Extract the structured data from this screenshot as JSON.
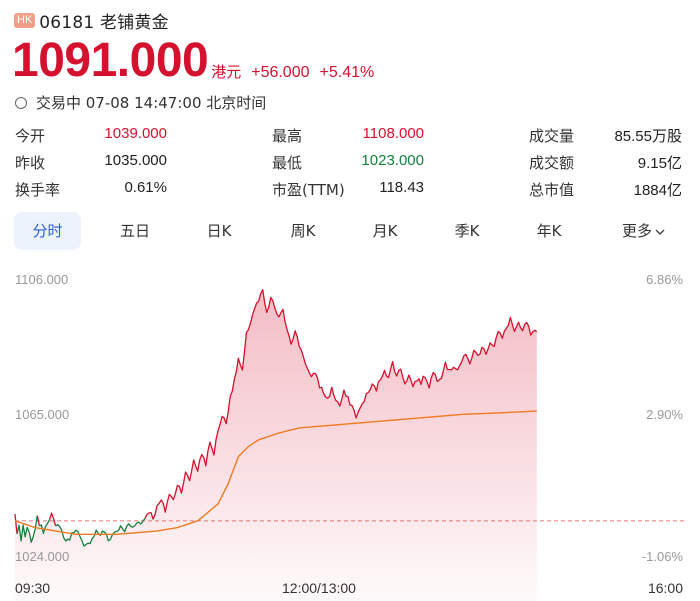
{
  "header": {
    "market_badge": "HK",
    "code_name": "06181 老铺黄金"
  },
  "price": {
    "last": "1091.000",
    "unit": "港元",
    "change": "+56.000",
    "change_pct": "+5.41%"
  },
  "status": {
    "text": "交易中 07-08 14:47:00 北京时间"
  },
  "quote": {
    "rows": [
      [
        {
          "label": "今开",
          "value": "1039.000"
        },
        {
          "label": "最高",
          "value": "1108.000"
        },
        {
          "label": "成交量",
          "value": "85.55万股"
        }
      ],
      [
        {
          "label": "昨收",
          "value": "1035.000"
        },
        {
          "label": "最低",
          "value": "1023.000"
        },
        {
          "label": "成交额",
          "value": "9.15亿"
        }
      ],
      [
        {
          "label": "换手率",
          "value": "0.61%"
        },
        {
          "label": "市盈(TTM)",
          "value": "118.43"
        },
        {
          "label": "总市值",
          "value": "1884亿"
        }
      ]
    ]
  },
  "tabs": [
    "分时",
    "五日",
    "日K",
    "周K",
    "月K",
    "季K",
    "年K",
    "更多"
  ],
  "colors": {
    "up": "#d4112e",
    "down": "#17803d",
    "avg": "#ef7a22",
    "prev_close": "#e06060",
    "tab_active": "#2c5fd8"
  },
  "chart_data": {
    "type": "line",
    "y_labels": [
      "1106.000",
      "1065.000",
      "1024.000"
    ],
    "y_pct_labels": [
      "6.86%",
      "2.90%",
      "-1.06%"
    ],
    "x_labels": [
      "09:30",
      "12:00/13:00",
      "16:00"
    ],
    "ylim": [
      1024.0,
      1106.0
    ],
    "prev_close": 1035.0,
    "last_price": 1091.0,
    "time_span_minutes": 330,
    "elapsed_minutes": 257,
    "price_anchors": [
      [
        0,
        1037
      ],
      [
        1,
        1031
      ],
      [
        2,
        1034
      ],
      [
        3,
        1029
      ],
      [
        4,
        1033
      ],
      [
        5,
        1030
      ],
      [
        6,
        1033
      ],
      [
        7,
        1031
      ],
      [
        8,
        1028
      ],
      [
        9,
        1031
      ],
      [
        10,
        1032
      ],
      [
        11,
        1037
      ],
      [
        12,
        1034
      ],
      [
        14,
        1032
      ],
      [
        16,
        1035
      ],
      [
        18,
        1037
      ],
      [
        20,
        1033
      ],
      [
        22,
        1034
      ],
      [
        24,
        1030
      ],
      [
        26,
        1029
      ],
      [
        28,
        1031
      ],
      [
        30,
        1033
      ],
      [
        32,
        1030
      ],
      [
        34,
        1027
      ],
      [
        36,
        1028
      ],
      [
        38,
        1030
      ],
      [
        40,
        1032
      ],
      [
        42,
        1031
      ],
      [
        44,
        1032
      ],
      [
        46,
        1029
      ],
      [
        48,
        1031
      ],
      [
        50,
        1032
      ],
      [
        52,
        1033
      ],
      [
        54,
        1032
      ],
      [
        56,
        1034
      ],
      [
        58,
        1033
      ],
      [
        60,
        1035
      ],
      [
        62,
        1034
      ],
      [
        64,
        1036
      ],
      [
        66,
        1038
      ],
      [
        68,
        1036
      ],
      [
        70,
        1039
      ],
      [
        72,
        1041
      ],
      [
        74,
        1038
      ],
      [
        76,
        1043
      ],
      [
        78,
        1041
      ],
      [
        80,
        1046
      ],
      [
        82,
        1044
      ],
      [
        84,
        1049
      ],
      [
        86,
        1047
      ],
      [
        88,
        1053
      ],
      [
        90,
        1050
      ],
      [
        92,
        1055
      ],
      [
        94,
        1052
      ],
      [
        96,
        1058
      ],
      [
        98,
        1055
      ],
      [
        100,
        1062
      ],
      [
        102,
        1066
      ],
      [
        104,
        1064
      ],
      [
        106,
        1072
      ],
      [
        108,
        1076
      ],
      [
        110,
        1083
      ],
      [
        112,
        1079
      ],
      [
        114,
        1090
      ],
      [
        116,
        1094
      ],
      [
        118,
        1098
      ],
      [
        120,
        1100
      ],
      [
        122,
        1103
      ],
      [
        124,
        1096
      ],
      [
        126,
        1101
      ],
      [
        128,
        1098
      ],
      [
        130,
        1095
      ],
      [
        132,
        1097
      ],
      [
        134,
        1092
      ],
      [
        136,
        1088
      ],
      [
        138,
        1091
      ],
      [
        140,
        1087
      ],
      [
        142,
        1084
      ],
      [
        144,
        1080
      ],
      [
        146,
        1077
      ],
      [
        148,
        1079
      ],
      [
        150,
        1075
      ],
      [
        152,
        1073
      ],
      [
        154,
        1071
      ],
      [
        156,
        1074
      ],
      [
        158,
        1071
      ],
      [
        160,
        1069
      ],
      [
        162,
        1073
      ],
      [
        164,
        1071
      ],
      [
        166,
        1069
      ],
      [
        168,
        1066
      ],
      [
        170,
        1068
      ],
      [
        172,
        1071
      ],
      [
        174,
        1073
      ],
      [
        176,
        1075
      ],
      [
        178,
        1074
      ],
      [
        180,
        1077
      ],
      [
        182,
        1080
      ],
      [
        184,
        1077
      ],
      [
        186,
        1082
      ],
      [
        188,
        1078
      ],
      [
        190,
        1080
      ],
      [
        192,
        1076
      ],
      [
        194,
        1078
      ],
      [
        196,
        1075
      ],
      [
        198,
        1077
      ],
      [
        200,
        1076
      ],
      [
        202,
        1078
      ],
      [
        204,
        1075
      ],
      [
        206,
        1079
      ],
      [
        208,
        1077
      ],
      [
        210,
        1078
      ],
      [
        212,
        1082
      ],
      [
        214,
        1079
      ],
      [
        216,
        1081
      ],
      [
        218,
        1080
      ],
      [
        220,
        1082
      ],
      [
        222,
        1084
      ],
      [
        224,
        1082
      ],
      [
        226,
        1085
      ],
      [
        228,
        1084
      ],
      [
        230,
        1086
      ],
      [
        232,
        1085
      ],
      [
        234,
        1088
      ],
      [
        236,
        1087
      ],
      [
        238,
        1091
      ],
      [
        240,
        1089
      ],
      [
        242,
        1092
      ],
      [
        244,
        1095
      ],
      [
        246,
        1091
      ],
      [
        248,
        1093
      ],
      [
        250,
        1091
      ],
      [
        252,
        1094
      ],
      [
        254,
        1090
      ],
      [
        257,
        1091
      ]
    ],
    "avg_anchors": [
      [
        0,
        1035
      ],
      [
        10,
        1033
      ],
      [
        20,
        1032
      ],
      [
        30,
        1031
      ],
      [
        40,
        1031
      ],
      [
        50,
        1031
      ],
      [
        60,
        1031.5
      ],
      [
        70,
        1032
      ],
      [
        80,
        1033
      ],
      [
        90,
        1035
      ],
      [
        100,
        1040
      ],
      [
        105,
        1046
      ],
      [
        110,
        1054
      ],
      [
        115,
        1057
      ],
      [
        120,
        1059
      ],
      [
        130,
        1061
      ],
      [
        140,
        1062.5
      ],
      [
        160,
        1063.5
      ],
      [
        180,
        1064.5
      ],
      [
        200,
        1065.5
      ],
      [
        220,
        1066.5
      ],
      [
        240,
        1067
      ],
      [
        257,
        1067.5
      ]
    ]
  }
}
